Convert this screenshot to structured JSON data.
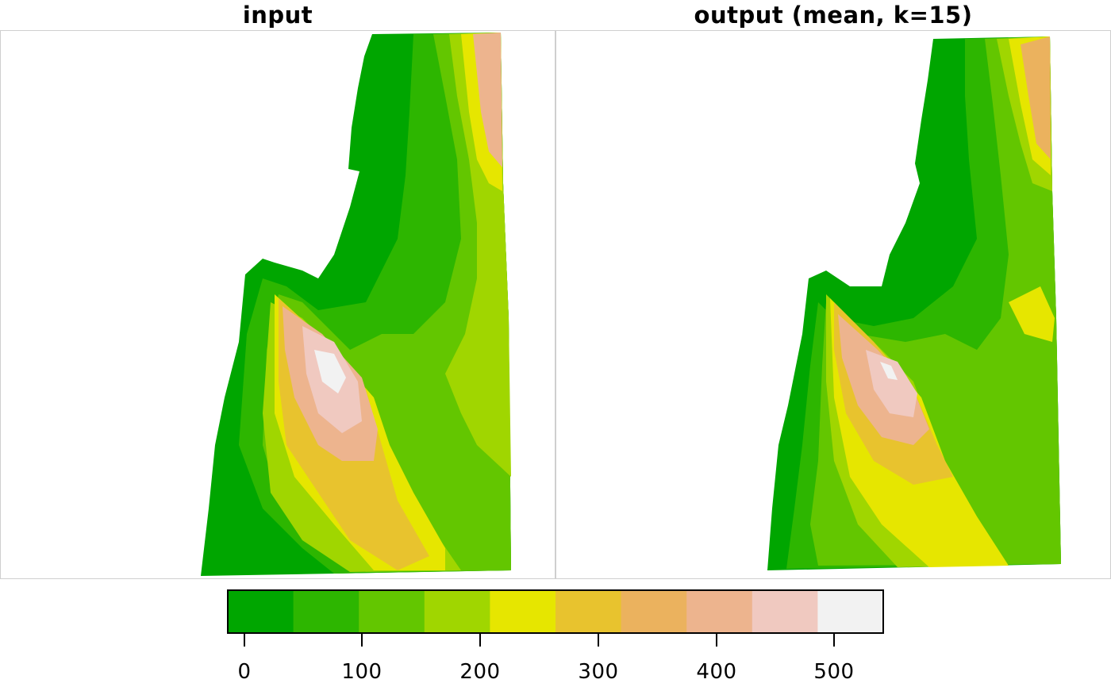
{
  "panels": [
    {
      "title": "input"
    },
    {
      "title": "output (mean, k=15)"
    }
  ],
  "legend": {
    "breaks": [
      -15,
      35,
      85,
      135,
      185,
      235,
      285,
      335,
      385,
      435,
      485,
      535
    ],
    "colors": [
      "#00A600",
      "#2DB600",
      "#63C600",
      "#A0D600",
      "#E6E600",
      "#E8C32E",
      "#EBB25E",
      "#EDB48E",
      "#F0C9C0",
      "#F2F2F2",
      "#F2F2F2"
    ],
    "palette": [
      "#00A600",
      "#2DB600",
      "#63C600",
      "#A0D600",
      "#E6E600",
      "#E8C32E",
      "#EBB25E",
      "#EDB48E",
      "#F0C9C0",
      "#F2F2F2"
    ],
    "ticks": [
      "0",
      "100",
      "200",
      "300",
      "400",
      "500"
    ]
  },
  "colors": {
    "background": "#ffffff",
    "panel_border": "#cfcfcf",
    "legend_border": "#000000"
  }
}
